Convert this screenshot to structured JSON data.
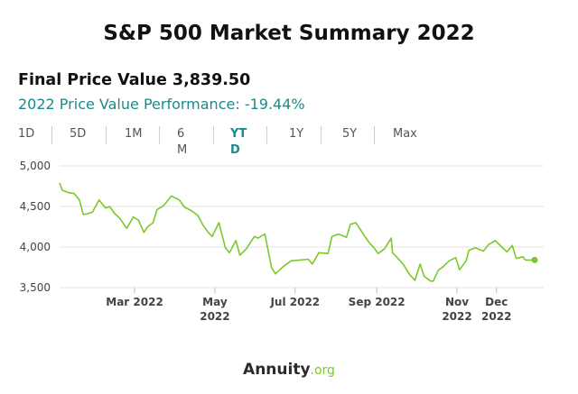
{
  "page": {
    "title": "S&P 500 Market Summary 2022",
    "final_price": "Final Price Value 3,839.50",
    "performance": "2022 Price Value Performance: -19.44%"
  },
  "tabs": [
    {
      "label": "1D",
      "active": false
    },
    {
      "label": "5D",
      "active": false
    },
    {
      "label": "1M",
      "active": false
    },
    {
      "label": "6\nM",
      "active": false
    },
    {
      "label": "YT\nD",
      "active": true
    },
    {
      "label": "1Y",
      "active": false
    },
    {
      "label": "5Y",
      "active": false
    },
    {
      "label": "Max",
      "active": false
    }
  ],
  "logo": {
    "brand": "Annuity",
    "tld": ".org"
  },
  "colors": {
    "line": "#7cc82a",
    "accent": "#1a8a8c",
    "grid": "#e3e3e3"
  },
  "chart_data": {
    "type": "line",
    "title": "",
    "ylim": [
      3500,
      5000
    ],
    "yticks": [
      3500,
      4000,
      4500,
      5000
    ],
    "ytick_labels": [
      "3,500",
      "4,000",
      "4,500",
      "5,000"
    ],
    "xticks": [
      {
        "date": "2022-03-01",
        "label": "Mar 2022"
      },
      {
        "date": "2022-05-01",
        "label": "May\n2022"
      },
      {
        "date": "2022-07-01",
        "label": "Jul 2022"
      },
      {
        "date": "2022-09-01",
        "label": "Sep 2022"
      },
      {
        "date": "2022-11-01",
        "label": "Nov\n2022"
      },
      {
        "date": "2022-12-01",
        "label": "Dec\n2022"
      }
    ],
    "grid": true,
    "end_marker": true,
    "series": [
      {
        "x": [
          "2022-01-03",
          "2022-01-05",
          "2022-01-10",
          "2022-01-14",
          "2022-01-18",
          "2022-01-21",
          "2022-01-24",
          "2022-01-28",
          "2022-02-02",
          "2022-02-07",
          "2022-02-10",
          "2022-02-14",
          "2022-02-18",
          "2022-02-23",
          "2022-02-28",
          "2022-03-04",
          "2022-03-08",
          "2022-03-11",
          "2022-03-15",
          "2022-03-18",
          "2022-03-23",
          "2022-03-29",
          "2022-04-04",
          "2022-04-08",
          "2022-04-13",
          "2022-04-18",
          "2022-04-22",
          "2022-04-26",
          "2022-04-29",
          "2022-05-04",
          "2022-05-09",
          "2022-05-12",
          "2022-05-17",
          "2022-05-20",
          "2022-05-25",
          "2022-05-31",
          "2022-06-03",
          "2022-06-08",
          "2022-06-13",
          "2022-06-16",
          "2022-06-22",
          "2022-06-28",
          "2022-07-05",
          "2022-07-11",
          "2022-07-14",
          "2022-07-19",
          "2022-07-26",
          "2022-07-29",
          "2022-08-03",
          "2022-08-09",
          "2022-08-12",
          "2022-08-16",
          "2022-08-19",
          "2022-08-23",
          "2022-08-26",
          "2022-08-30",
          "2022-09-02",
          "2022-09-07",
          "2022-09-12",
          "2022-09-13",
          "2022-09-16",
          "2022-09-21",
          "2022-09-26",
          "2022-09-30",
          "2022-10-04",
          "2022-10-07",
          "2022-10-12",
          "2022-10-14",
          "2022-10-18",
          "2022-10-21",
          "2022-10-26",
          "2022-10-31",
          "2022-11-03",
          "2022-11-08",
          "2022-11-10",
          "2022-11-15",
          "2022-11-21",
          "2022-11-25",
          "2022-11-30",
          "2022-12-05",
          "2022-12-09",
          "2022-12-13",
          "2022-12-16",
          "2022-12-21",
          "2022-12-23",
          "2022-12-30"
        ],
        "y": [
          4790,
          4700,
          4670,
          4660,
          4580,
          4400,
          4410,
          4430,
          4580,
          4480,
          4500,
          4410,
          4350,
          4230,
          4370,
          4330,
          4180,
          4250,
          4300,
          4460,
          4510,
          4630,
          4580,
          4490,
          4450,
          4390,
          4270,
          4180,
          4130,
          4300,
          3990,
          3930,
          4080,
          3900,
          3980,
          4130,
          4110,
          4160,
          3750,
          3670,
          3760,
          3830,
          3840,
          3850,
          3790,
          3930,
          3920,
          4130,
          4160,
          4120,
          4280,
          4300,
          4230,
          4130,
          4060,
          3990,
          3920,
          3980,
          4110,
          3930,
          3880,
          3790,
          3660,
          3590,
          3790,
          3640,
          3580,
          3580,
          3720,
          3750,
          3830,
          3870,
          3720,
          3830,
          3960,
          3990,
          3950,
          4030,
          4080,
          4000,
          3940,
          4020,
          3860,
          3880,
          3840,
          3840
        ]
      }
    ]
  }
}
